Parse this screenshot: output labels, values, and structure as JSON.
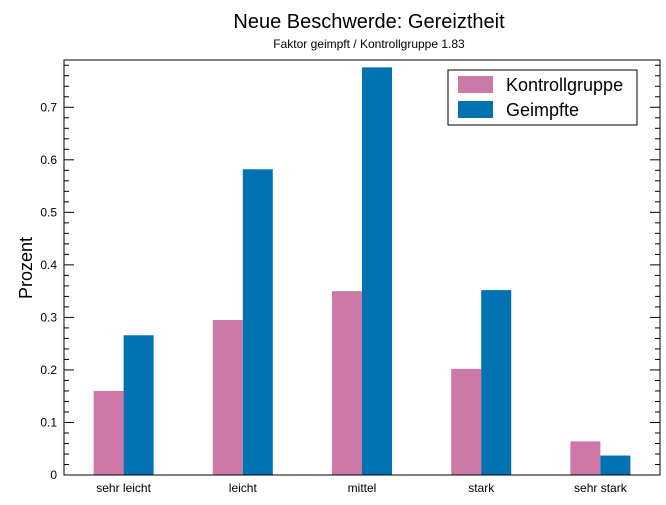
{
  "chart_data": {
    "type": "bar",
    "title": "Neue Beschwerde: Gereiztheit",
    "subtitle": "Faktor geimpft / Kontrollgruppe 1.83",
    "xlabel": "",
    "ylabel": "Prozent",
    "ylim": [
      0,
      0.79
    ],
    "yticks": [
      0,
      0.1,
      0.2,
      0.3,
      0.4,
      0.5,
      0.6,
      0.7
    ],
    "ytick_labels": [
      "0",
      "0.1",
      "0.2",
      "0.3",
      "0.4",
      "0.5",
      "0.6",
      "0.7"
    ],
    "categories": [
      "sehr leicht",
      "leicht",
      "mittel",
      "stark",
      "sehr stark"
    ],
    "series": [
      {
        "name": "Kontrollgruppe",
        "color": "#cc79a7",
        "values": [
          0.16,
          0.295,
          0.35,
          0.202,
          0.064
        ]
      },
      {
        "name": "Geimpfte",
        "color": "#0072b2",
        "values": [
          0.266,
          0.582,
          0.776,
          0.352,
          0.037
        ]
      }
    ],
    "legend_position": "top-right",
    "grid": false
  }
}
